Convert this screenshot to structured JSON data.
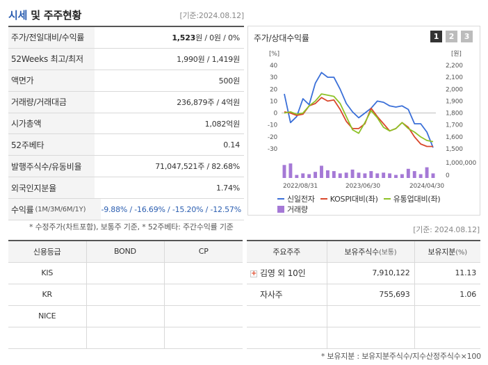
{
  "header": {
    "title_a": "시세",
    "title_b": " 및 주주현황",
    "date": "[기준:2024.08.12]"
  },
  "quote": {
    "rows": [
      {
        "label": "주가/전일대비/수익률",
        "price": "1,523",
        "unit": "원 / 0원 / 0%"
      },
      {
        "label": "52Weeks 최고/최저",
        "value": "1,990원 / 1,419원"
      },
      {
        "label": "액면가",
        "value": "500원"
      },
      {
        "label": "거래량/거래대금",
        "value": "236,879주 / 4억원"
      },
      {
        "label": "시가총액",
        "value": "1,082억원"
      },
      {
        "label": "52주베타",
        "value": "0.14"
      },
      {
        "label": "발행주식수/유동비율",
        "value": "71,047,521주 / 82.68%"
      },
      {
        "label": "외국인지분율",
        "value": "1.74%"
      }
    ],
    "returns_label": "수익률",
    "returns_sub": "(1M/3M/6M/1Y)",
    "returns_value": "-9.88% / -16.69% / -15.20% / -12.57%"
  },
  "footnote1": "* 수정주가(차트포함), 보통주 기준, * 52주베타: 주간수익률 기준",
  "chart_panel": {
    "title": "주가/상대수익률",
    "pages": [
      "1",
      "2",
      "3"
    ],
    "left_unit": "[%]",
    "right_unit": "[원]",
    "volume_label": "1,000,000",
    "volume_zero": "0"
  },
  "chart_data": {
    "type": "line",
    "x_ticks": [
      "2022/08/31",
      "2023/06/30",
      "2024/04/30"
    ],
    "left_axis": {
      "ticks": [
        40,
        30,
        20,
        10,
        0,
        -10,
        -20,
        -30
      ],
      "ylim": [
        -30,
        40
      ],
      "unit": "[%]"
    },
    "right_axis": {
      "ticks": [
        "2,200",
        "2,100",
        "2,000",
        "1,900",
        "1,800",
        "1,700",
        "1,600",
        "1,500"
      ],
      "ylim": [
        1500,
        2200
      ],
      "unit": "[원]"
    },
    "series": [
      {
        "name": "신일전자",
        "color": "#3a6fd8",
        "values": [
          16,
          -8,
          -3,
          12,
          7,
          25,
          34,
          30,
          30,
          20,
          8,
          1,
          -4,
          0,
          4,
          10,
          9,
          6,
          5,
          6,
          3,
          -9,
          -9,
          -16,
          -29
        ]
      },
      {
        "name": "KOSPI대비(좌)",
        "color": "#d9472b",
        "values": [
          1,
          0,
          -2,
          -1,
          6,
          8,
          13,
          10,
          11,
          3,
          -7,
          -13,
          -13,
          -9,
          4,
          -3,
          -9,
          -15,
          -13,
          -8,
          -12,
          -20,
          -26,
          -28,
          -28
        ]
      },
      {
        "name": "유통업대비(좌)",
        "color": "#8ec126",
        "values": [
          0,
          1,
          -1,
          0,
          6,
          10,
          16,
          15,
          14,
          8,
          -3,
          -14,
          -17,
          -8,
          2,
          -4,
          -12,
          -15,
          -13,
          -8,
          -13,
          -16,
          -20,
          -23,
          -24
        ]
      }
    ],
    "volume": {
      "name": "거래량",
      "color": "#a579d6",
      "values": [
        0.85,
        0.95,
        0.2,
        0.3,
        0.25,
        0.4,
        0.8,
        0.5,
        0.45,
        0.3,
        0.35,
        0.55,
        0.35,
        0.3,
        0.45,
        0.3,
        0.35,
        0.3,
        0.2,
        0.25,
        0.6,
        0.45,
        0.25,
        0.7,
        0.3
      ]
    }
  },
  "legend": [
    {
      "label": "신일전자",
      "color": "#3a6fd8",
      "kind": "line"
    },
    {
      "label": "KOSPI대비(좌)",
      "color": "#d9472b",
      "kind": "line"
    },
    {
      "label": "유통업대비(좌)",
      "color": "#8ec126",
      "kind": "line"
    },
    {
      "label": "거래량",
      "color": "#a579d6",
      "kind": "bar"
    }
  ],
  "date2": "[기준: 2024.08.12]",
  "credit": {
    "headers": [
      "신용등급",
      "BOND",
      "CP"
    ],
    "rows": [
      [
        "KIS",
        "",
        ""
      ],
      [
        "KR",
        "",
        ""
      ],
      [
        "NICE",
        "",
        ""
      ],
      [
        "",
        "",
        ""
      ]
    ]
  },
  "holders": {
    "headers": [
      "주요주주",
      "보유주식수",
      "(보통)",
      "보유지분",
      "(%)"
    ],
    "rows": [
      {
        "name": "김영 외 10인",
        "shares": "7,910,122",
        "pct": "11.13",
        "expand": "+"
      },
      {
        "name": "자사주",
        "shares": "755,693",
        "pct": "1.06"
      }
    ]
  },
  "footnote2": "* 보유지분 : 보유지분주식수/지수산정주식수×100"
}
